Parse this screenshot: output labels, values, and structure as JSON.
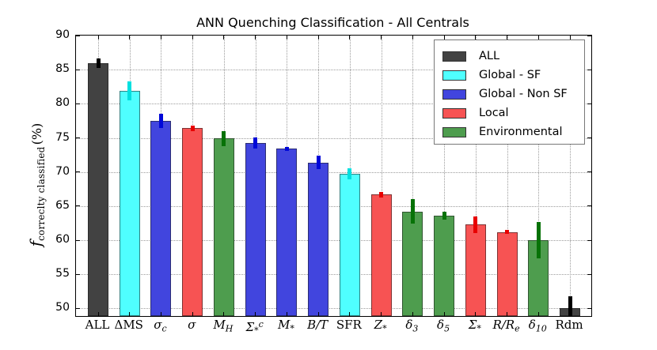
{
  "title": "ANN Quenching Classification - All Centrals",
  "ylabel": {
    "symbol": "f",
    "subscript": "correclty classified",
    "unit": "(%)"
  },
  "chart_data": {
    "type": "bar",
    "title": "ANN Quenching Classification - All Centrals",
    "xlabel": "",
    "ylabel": "f_correclty classified (%)",
    "ylim": [
      48.9,
      90
    ],
    "yticks": [
      50,
      55,
      60,
      65,
      70,
      75,
      80,
      85,
      90
    ],
    "grid": "dotted, both axes",
    "legend_position": "upper right",
    "legend": [
      {
        "label": "ALL",
        "fill": "#424242",
        "err_color": "#000000"
      },
      {
        "label": "Global - SF",
        "fill": "#4FFFFF",
        "err_color": "#00E0E0"
      },
      {
        "label": "Global - Non SF",
        "fill": "#4145DE",
        "err_color": "#0008D8"
      },
      {
        "label": "Local",
        "fill": "#F75353",
        "err_color": "#E80000"
      },
      {
        "label": "Environmental",
        "fill": "#4E9D4E",
        "err_color": "#077207"
      }
    ],
    "bars": [
      {
        "label": "ALL",
        "roman": true,
        "group": "ALL",
        "value": 86.0,
        "err": 0.7
      },
      {
        "label": "ΔMS",
        "roman": true,
        "group": "Global - SF",
        "value": 81.9,
        "err": 1.4
      },
      {
        "label": "σ_{c}",
        "roman": false,
        "group": "Global - Non SF",
        "value": 77.5,
        "err": 1.0
      },
      {
        "label": "σ",
        "roman": false,
        "group": "Local",
        "value": 76.4,
        "err": 0.4
      },
      {
        "label": "M_{H}",
        "roman": false,
        "group": "Environmental",
        "value": 74.9,
        "err": 1.1
      },
      {
        "label": "Σ_{*}^{c}",
        "roman": false,
        "group": "Global - Non SF",
        "value": 74.3,
        "err": 0.8
      },
      {
        "label": "M_{*}",
        "roman": false,
        "group": "Global - Non SF",
        "value": 73.4,
        "err": 0.3
      },
      {
        "label": "B/T",
        "roman": false,
        "group": "Global - Non SF",
        "value": 71.4,
        "err": 1.0
      },
      {
        "label": "SFR",
        "roman": true,
        "group": "Global - SF",
        "value": 69.7,
        "err": 0.8
      },
      {
        "label": "Z_{*}",
        "roman": false,
        "group": "Local",
        "value": 66.7,
        "err": 0.4
      },
      {
        "label": "δ_{3}",
        "roman": false,
        "group": "Environmental",
        "value": 64.2,
        "err": 1.8
      },
      {
        "label": "δ_{5}",
        "roman": false,
        "group": "Environmental",
        "value": 63.6,
        "err": 0.6
      },
      {
        "label": "Σ_{*}",
        "roman": false,
        "group": "Local",
        "value": 62.3,
        "err": 1.2
      },
      {
        "label": "R/R_{e}",
        "roman": false,
        "group": "Local",
        "value": 61.2,
        "err": 0.3
      },
      {
        "label": "δ_{10}",
        "roman": false,
        "group": "Environmental",
        "value": 60.0,
        "err": 2.7
      },
      {
        "label": "Rdm",
        "roman": true,
        "group": "ALL",
        "value": 50.1,
        "err": 1.7
      }
    ]
  }
}
